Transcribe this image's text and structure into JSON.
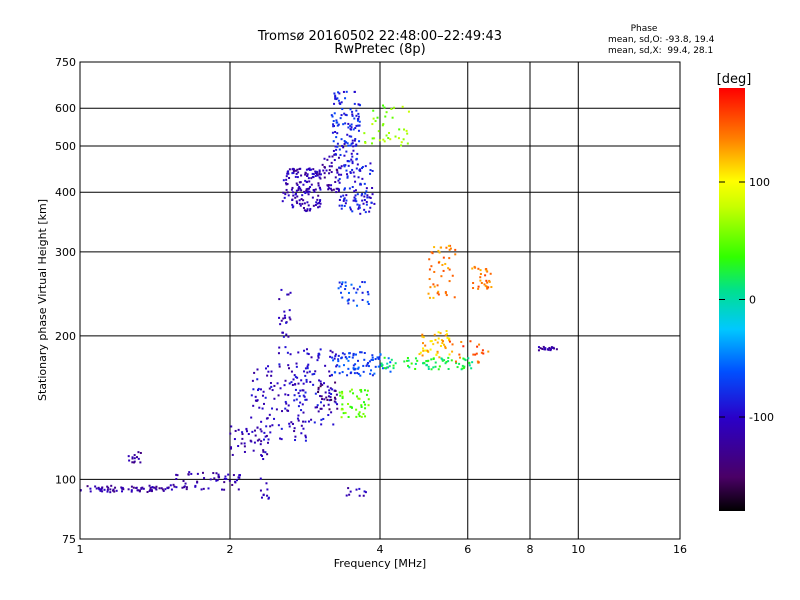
{
  "chart_data": {
    "type": "scatter",
    "title": "Tromsø 20160502 22:48:00–22:49:43",
    "subtitle": "RwPretec (8p)",
    "xlabel": "Frequency [MHz]",
    "ylabel": "Stationary phase Virtual Height [km]",
    "x_scale": "log",
    "y_scale": "log",
    "xlim": [
      1,
      16
    ],
    "ylim": [
      75,
      750
    ],
    "x_ticks": [
      1,
      2,
      4,
      6,
      8,
      10,
      16
    ],
    "y_ticks": [
      75,
      100,
      200,
      300,
      400,
      500,
      600,
      750
    ],
    "grid": true,
    "phase_info": {
      "heading": "Phase",
      "line_o": "mean, sd,O: -93.8, 19.4",
      "line_x": "mean, sd,X:  99.4, 28.1"
    },
    "colorbar": {
      "label": "[deg]",
      "min": -180,
      "max": 180,
      "ticks": [
        100,
        0,
        -100
      ]
    },
    "clusters": [
      {
        "x0": 1.0,
        "x1": 1.5,
        "y0": 94,
        "y1": 97,
        "phase": -120,
        "n": 70
      },
      {
        "x0": 1.5,
        "x1": 2.1,
        "y0": 95,
        "y1": 104,
        "phase": -115,
        "n": 60
      },
      {
        "x0": 1.25,
        "x1": 1.33,
        "y0": 108,
        "y1": 115,
        "phase": -125,
        "n": 14
      },
      {
        "x0": 2.0,
        "x1": 2.4,
        "y0": 110,
        "y1": 130,
        "phase": -110,
        "n": 40
      },
      {
        "x0": 2.2,
        "x1": 2.9,
        "y0": 120,
        "y1": 175,
        "phase": -105,
        "n": 110
      },
      {
        "x0": 2.5,
        "x1": 2.65,
        "y0": 170,
        "y1": 250,
        "phase": -110,
        "n": 30
      },
      {
        "x0": 2.7,
        "x1": 3.3,
        "y0": 130,
        "y1": 190,
        "phase": -100,
        "n": 90
      },
      {
        "x0": 3.0,
        "x1": 3.3,
        "y0": 140,
        "y1": 160,
        "phase": -140,
        "n": 20
      },
      {
        "x0": 3.2,
        "x1": 4.2,
        "y0": 165,
        "y1": 185,
        "phase": -70,
        "n": 80
      },
      {
        "x0": 3.3,
        "x1": 3.8,
        "y0": 135,
        "y1": 155,
        "phase": 50,
        "n": 45
      },
      {
        "x0": 4.0,
        "x1": 6.2,
        "y0": 170,
        "y1": 180,
        "phase": 20,
        "n": 70
      },
      {
        "x0": 4.8,
        "x1": 5.6,
        "y0": 180,
        "y1": 205,
        "phase": 120,
        "n": 45
      },
      {
        "x0": 5.5,
        "x1": 6.6,
        "y0": 175,
        "y1": 195,
        "phase": 150,
        "n": 20
      },
      {
        "x0": 5.0,
        "x1": 5.7,
        "y0": 240,
        "y1": 310,
        "phase": 135,
        "n": 45
      },
      {
        "x0": 6.1,
        "x1": 6.7,
        "y0": 250,
        "y1": 280,
        "phase": 140,
        "n": 30
      },
      {
        "x0": 3.3,
        "x1": 3.8,
        "y0": 230,
        "y1": 260,
        "phase": -70,
        "n": 30
      },
      {
        "x0": 2.55,
        "x1": 3.05,
        "y0": 365,
        "y1": 450,
        "phase": -110,
        "n": 150
      },
      {
        "x0": 3.05,
        "x1": 3.35,
        "y0": 400,
        "y1": 480,
        "phase": -120,
        "n": 40
      },
      {
        "x0": 3.3,
        "x1": 3.9,
        "y0": 360,
        "y1": 460,
        "phase": -90,
        "n": 100
      },
      {
        "x0": 3.2,
        "x1": 3.65,
        "y0": 460,
        "y1": 650,
        "phase": -85,
        "n": 120
      },
      {
        "x0": 3.7,
        "x1": 4.6,
        "y0": 500,
        "y1": 610,
        "phase": 60,
        "n": 40
      },
      {
        "x0": 8.3,
        "x1": 9.1,
        "y0": 186,
        "y1": 190,
        "phase": -115,
        "n": 20
      },
      {
        "x0": 2.3,
        "x1": 2.4,
        "y0": 90,
        "y1": 102,
        "phase": -100,
        "n": 10
      },
      {
        "x0": 3.4,
        "x1": 3.9,
        "y0": 92,
        "y1": 96,
        "phase": -110,
        "n": 10
      }
    ]
  }
}
